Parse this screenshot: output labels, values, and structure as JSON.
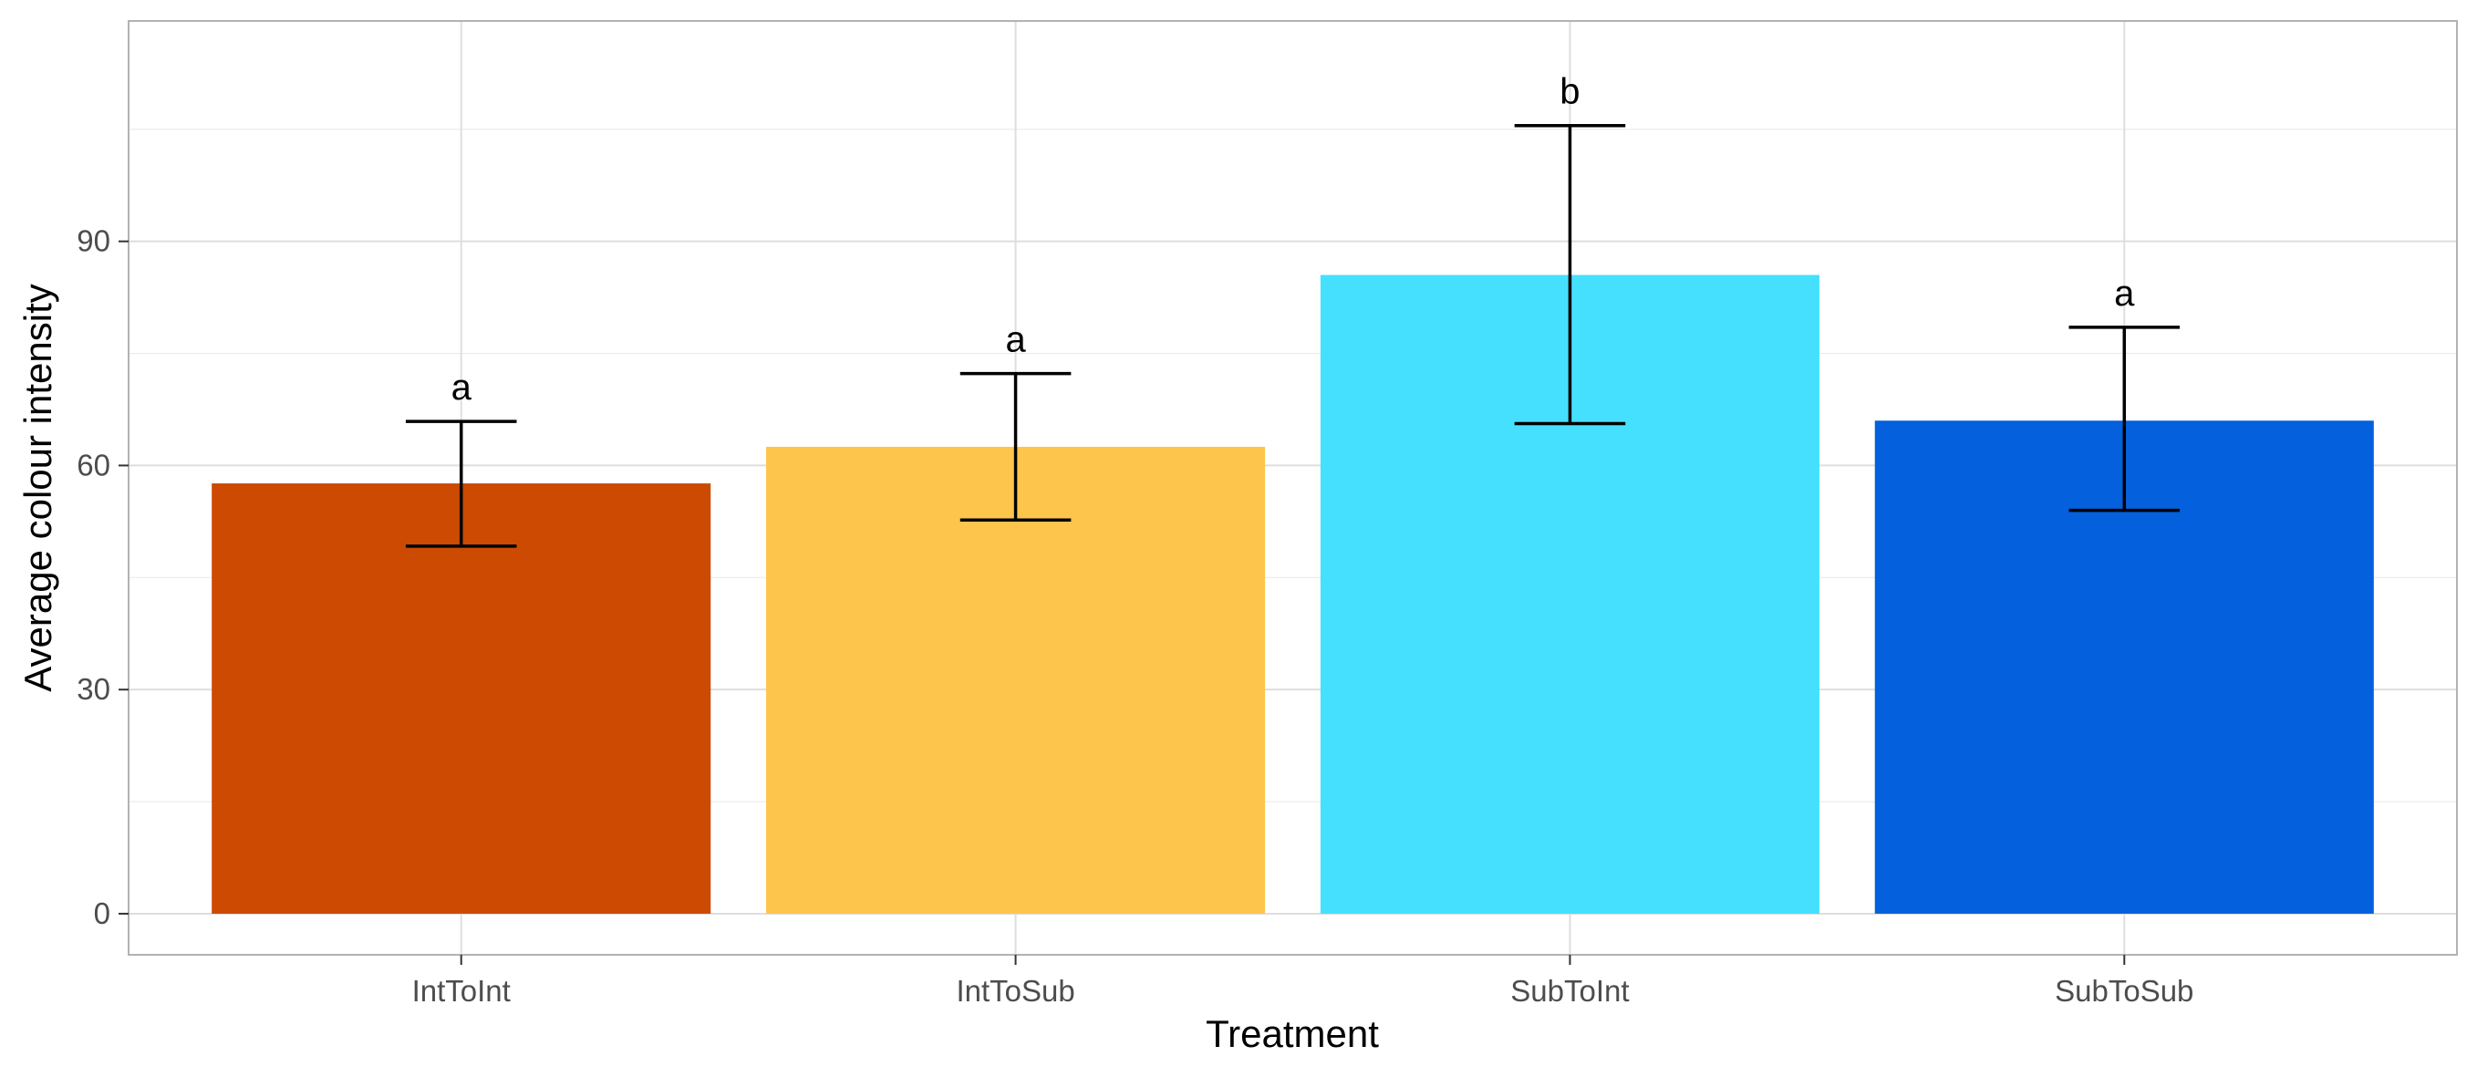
{
  "chart_data": {
    "type": "bar",
    "title": "",
    "xlabel": "Treatment",
    "ylabel": "Average colour intensity",
    "categories": [
      "IntToInt",
      "IntToSub",
      "SubToInt",
      "SubToSub"
    ],
    "values": [
      57.6,
      62.5,
      85.5,
      66.0
    ],
    "error_low": [
      49.2,
      52.7,
      65.6,
      54.0
    ],
    "error_high": [
      65.9,
      72.3,
      105.5,
      78.5
    ],
    "significance_labels": [
      "a",
      "a",
      "b",
      "a"
    ],
    "bar_colors": [
      "#CC4A02",
      "#FEC54C",
      "#45E0FE",
      "#0460DC"
    ],
    "ylim": [
      -5.5,
      119.5
    ],
    "yticks": [
      0,
      30,
      60,
      90
    ],
    "grid": true,
    "legend": "none"
  }
}
